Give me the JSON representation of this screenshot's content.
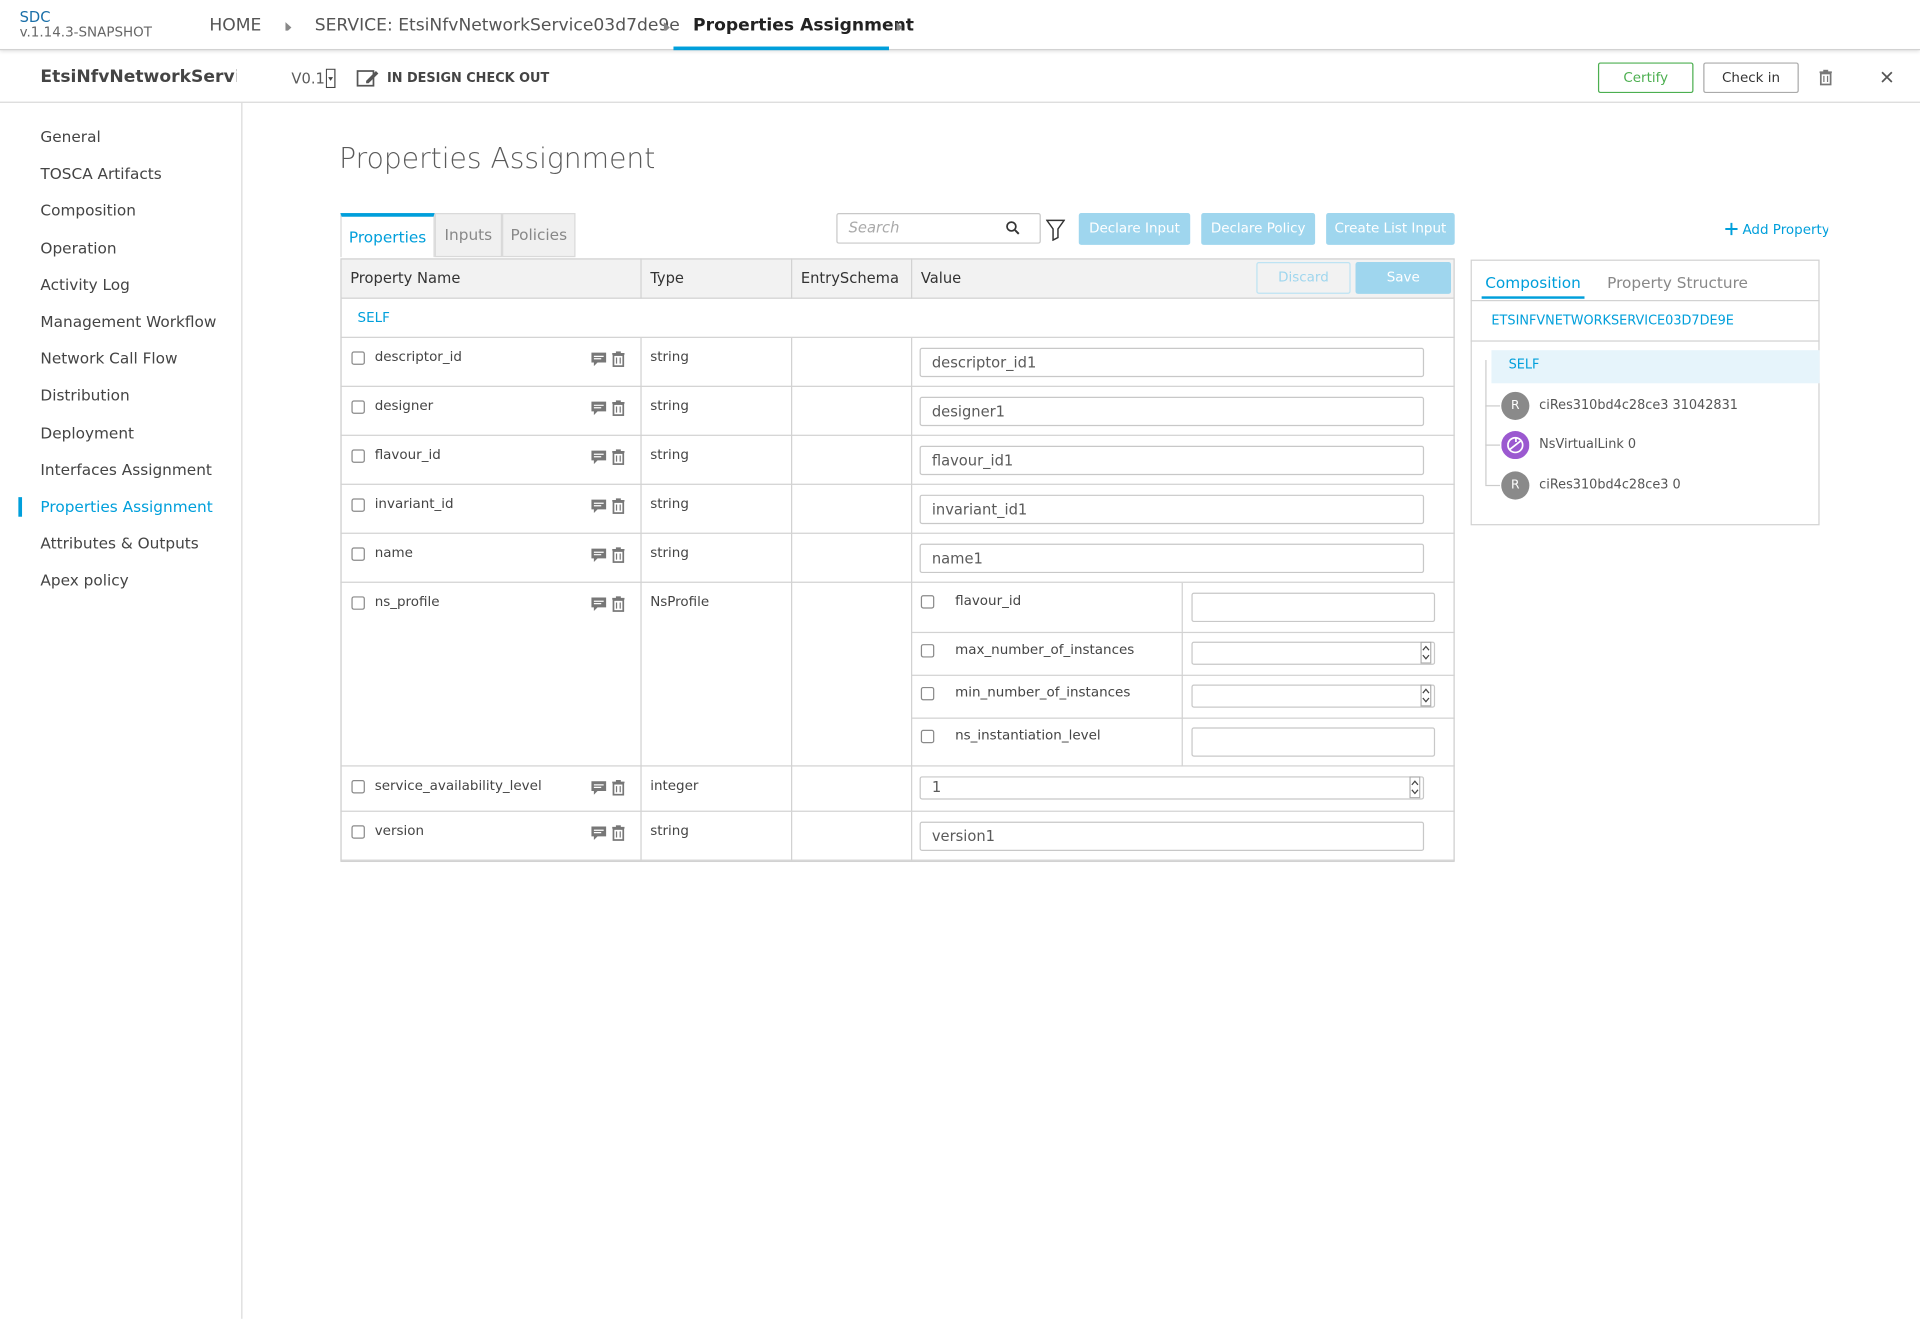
{
  "header": {
    "logo": "SDC",
    "version": "v.1.14.3-SNAPSHOT",
    "breadcrumbs": [
      "HOME",
      "SERVICE: EtsiNfvNetworkService03d7de9e",
      "Properties Assignment"
    ]
  },
  "toolbar": {
    "service_name": "EtsiNfvNetworkServic...",
    "version": "V0.1",
    "status": "IN DESIGN CHECK OUT",
    "buttons": [
      "Certify",
      "Check in"
    ]
  },
  "sidebar": {
    "items": [
      "General",
      "TOSCA Artifacts",
      "Composition",
      "Operation",
      "Activity Log",
      "Management Workflow",
      "Network Call Flow",
      "Distribution",
      "Deployment",
      "Interfaces Assignment",
      "Properties Assignment",
      "Attributes & Outputs",
      "Apex policy"
    ],
    "active": 10
  },
  "page": {
    "title": "Properties Assignment",
    "tabs": [
      "Properties",
      "Inputs",
      "Policies"
    ],
    "active_tab": 0,
    "search_placeholder": "Search",
    "actions": [
      "Declare Input",
      "Declare Policy",
      "Create List Input"
    ],
    "add_property": "Add Property"
  },
  "table": {
    "columns": [
      "Property Name",
      "Type",
      "EntrySchema",
      "Value"
    ],
    "buttons": [
      "Discard",
      "Save"
    ],
    "group": "SELF",
    "rows": [
      {
        "name": "descriptor_id",
        "type": "string",
        "value": "descriptor_id1"
      },
      {
        "name": "designer",
        "type": "string",
        "value": "designer1"
      },
      {
        "name": "flavour_id",
        "type": "string",
        "value": "flavour_id1"
      },
      {
        "name": "invariant_id",
        "type": "string",
        "value": "invariant_id1"
      },
      {
        "name": "name",
        "type": "string",
        "value": "name1"
      },
      {
        "name": "ns_profile",
        "type": "NsProfile",
        "fields": [
          "flavour_id",
          "max_number_of_instances",
          "min_number_of_instances",
          "ns_instantiation_level"
        ]
      },
      {
        "name": "service_availability_level",
        "type": "integer",
        "value": "1"
      },
      {
        "name": "version",
        "type": "string",
        "value": "version1"
      }
    ]
  },
  "composition": {
    "tabs": [
      "Composition",
      "Property Structure"
    ],
    "root": "ETSINFVNETWORKSERVICE03D7DE9E",
    "items": [
      {
        "label": "SELF"
      },
      {
        "icon": "R",
        "label": "ciRes310bd4c28ce3 31042831"
      },
      {
        "label": "NsVirtualLink 0"
      },
      {
        "icon": "R",
        "label": "ciRes310bd4c28ce3 0"
      }
    ]
  }
}
